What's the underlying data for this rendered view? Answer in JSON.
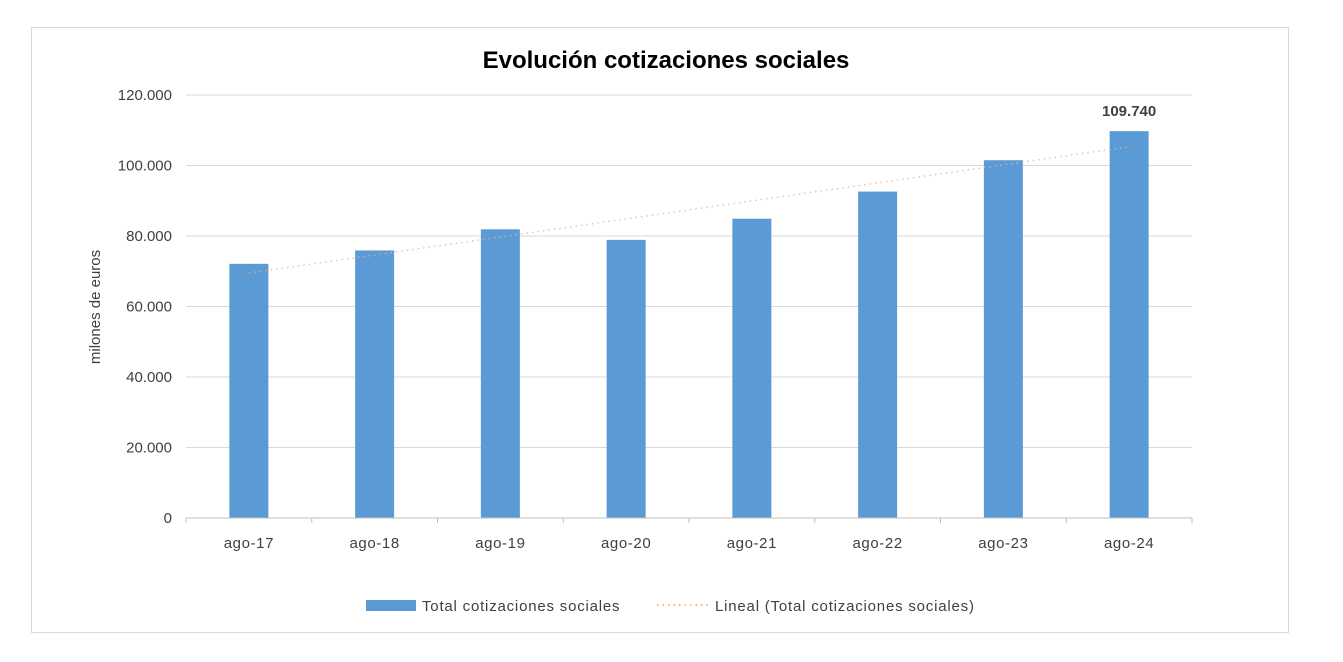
{
  "chart_data": {
    "type": "bar",
    "title": "Evolución cotizaciones sociales",
    "ylabel": "milones de euros",
    "xlabel": "",
    "categories": [
      "ago-17",
      "ago-18",
      "ago-19",
      "ago-20",
      "ago-21",
      "ago-22",
      "ago-23",
      "ago-24"
    ],
    "series": [
      {
        "name": "Total cotizaciones sociales",
        "values": [
          72100,
          75900,
          81900,
          78900,
          84900,
          92600,
          101500,
          109740
        ],
        "color": "#5b9bd5"
      }
    ],
    "trendline": {
      "name": "Lineal (Total cotizaciones sociales)",
      "type": "linear",
      "start": 69500,
      "end": 105300,
      "color": "#f4b183"
    },
    "data_labels": [
      {
        "category": "ago-24",
        "text": "109.740"
      }
    ],
    "ylim": [
      0,
      120000
    ],
    "yticks": [
      "0",
      "20.000",
      "40.000",
      "60.000",
      "80.000",
      "100.000",
      "120.000"
    ],
    "ytick_values": [
      0,
      20000,
      40000,
      60000,
      80000,
      100000,
      120000
    ],
    "grid": true,
    "legend": "bottom",
    "colors": {
      "gridline": "#d9d9d9",
      "axis": "#bfbfbf",
      "frame": "#d9d9d9"
    }
  }
}
